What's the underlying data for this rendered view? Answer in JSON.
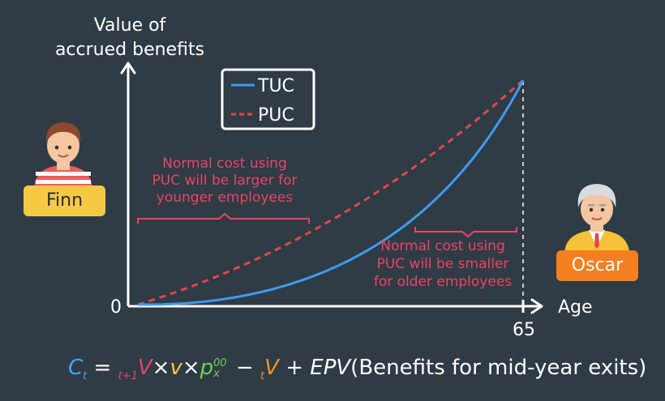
{
  "axis": {
    "y_label_line1": "Value of",
    "y_label_line2": "accrued benefits",
    "x_label": "Age",
    "origin_label": "0",
    "x_end_label": "65"
  },
  "legend": {
    "tuc": "TUC",
    "puc": "PUC"
  },
  "annotations": {
    "left": [
      "Normal cost using",
      "PUC will be larger for",
      "younger employees"
    ],
    "right": [
      "Normal cost using",
      "PUC will be smaller",
      "for older employees"
    ]
  },
  "people": {
    "finn": "Finn",
    "oscar": "Oscar"
  },
  "formula": {
    "C": "C",
    "C_sub": "t",
    "eq": "=",
    "V1_sub": "t+1",
    "V": "V",
    "times": "×",
    "v": "v",
    "p": "p",
    "p_sup": "00",
    "p_sub": "x",
    "minus": "−",
    "V2_sub": "t",
    "plus": "+",
    "EPV": "EPV",
    "tail": "(Benefits for mid-year exits)"
  },
  "colors": {
    "background": "#2f3b45",
    "tuc": "#3d9bf0",
    "puc": "#e04848",
    "annotation": "#ee4266",
    "finn_badge": "#f6c945",
    "oscar_badge": "#f47f20"
  }
}
